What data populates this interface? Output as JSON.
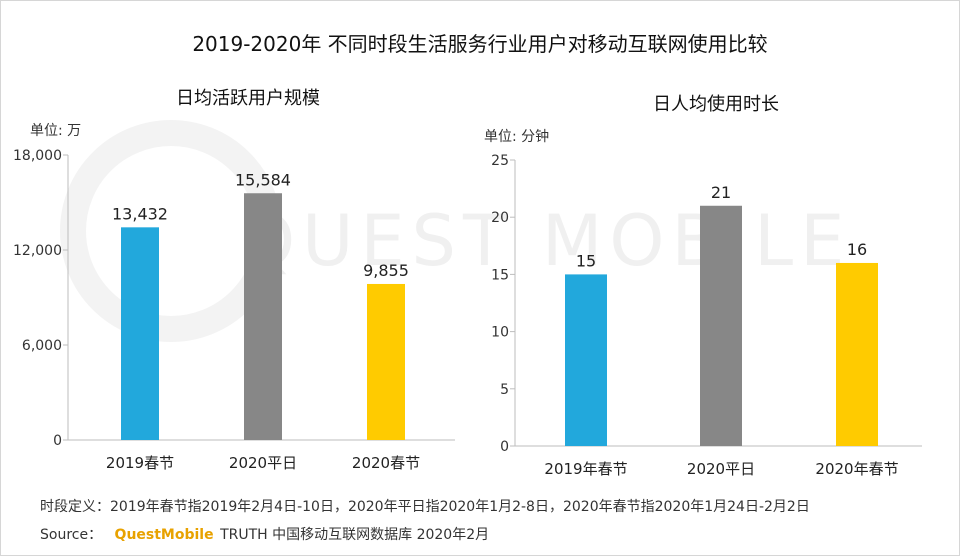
{
  "title": "2019-2020年 不同时段生活服务行业用户对移动互联网使用比较",
  "watermark": "QUEST MOBILE",
  "footer": {
    "definition": "时段定义：2019年春节指2019年2月4日-10日，2020年平日指2020年1月2-8日，2020年春节指2020年1月24日-2月2日",
    "source_prefix": "Source：",
    "source_brand": "QuestMobile",
    "source_rest": "TRUTH 中国移动互联网数据库 2020年2月"
  },
  "colors": {
    "blue": "#22a8dc",
    "gray": "#878787",
    "yellow": "#ffcb00"
  },
  "chart_data": [
    {
      "type": "bar",
      "title": "日均活跃用户规模",
      "unit": "单位: 万",
      "categories": [
        "2019春节",
        "2020平日",
        "2020春节"
      ],
      "values": [
        13432,
        15584,
        9855
      ],
      "value_labels": [
        "13,432",
        "15,584",
        "9,855"
      ],
      "colors": [
        "#22a8dc",
        "#878787",
        "#ffcb00"
      ],
      "yticks": [
        0,
        6000,
        12000,
        18000
      ],
      "ytick_labels": [
        "0",
        "6,000",
        "12,000",
        "18,000"
      ],
      "ylim": [
        0,
        18000
      ],
      "grid": false,
      "legend": "none"
    },
    {
      "type": "bar",
      "title": "日人均使用时长",
      "unit": "单位: 分钟",
      "categories": [
        "2019年春节",
        "2020平日",
        "2020年春节"
      ],
      "values": [
        15,
        21,
        16
      ],
      "value_labels": [
        "15",
        "21",
        "16"
      ],
      "colors": [
        "#22a8dc",
        "#878787",
        "#ffcb00"
      ],
      "yticks": [
        0,
        5,
        10,
        15,
        20,
        25
      ],
      "ytick_labels": [
        "0",
        "5",
        "10",
        "15",
        "20",
        "25"
      ],
      "ylim": [
        0,
        25
      ],
      "grid": false,
      "legend": "none"
    }
  ]
}
